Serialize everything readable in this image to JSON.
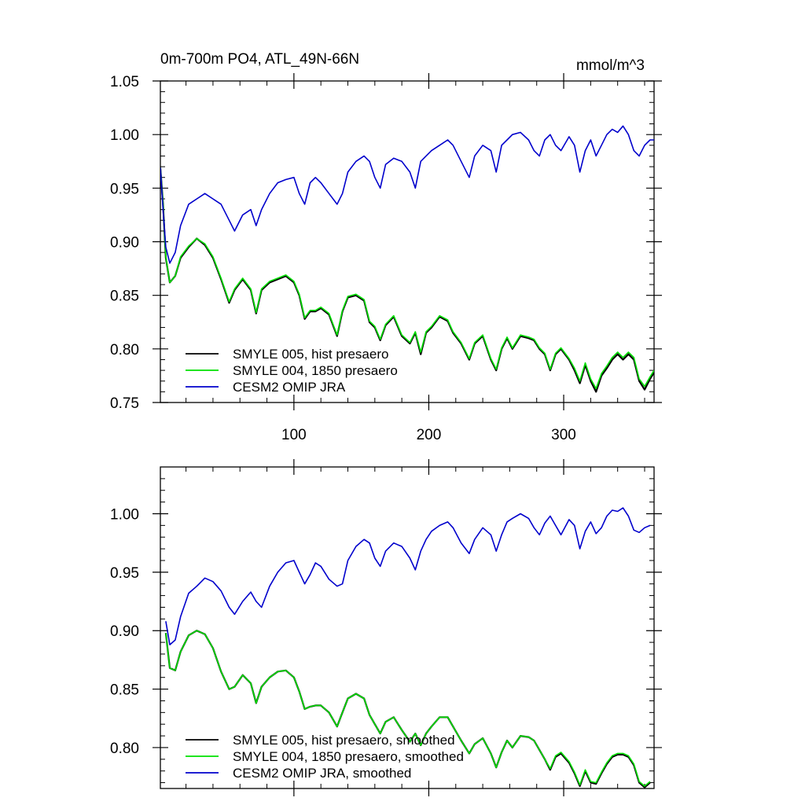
{
  "chart_data": [
    {
      "type": "line",
      "title_left": "0m-700m PO4, ATL_49N-66N",
      "title_right": "mmol/m^3",
      "xlabel": "",
      "ylabel": "",
      "xlim": [
        1,
        367
      ],
      "ylim": [
        0.75,
        1.05
      ],
      "yticks": [
        0.75,
        0.8,
        0.85,
        0.9,
        0.95,
        1.0,
        1.05
      ],
      "ytick_labels": [
        "0.75",
        "0.80",
        "0.85",
        "0.90",
        "0.95",
        "1.00",
        "1.05"
      ],
      "xticks": [
        100,
        200,
        300
      ],
      "xtick_labels": [
        "100",
        "200",
        "300"
      ],
      "legend_position": "bottom-left",
      "series": [
        {
          "name": "SMYLE 005, hist presaero",
          "color": "#000000",
          "x": [
            1,
            3,
            5,
            8,
            12,
            16,
            22,
            28,
            34,
            40,
            46,
            52,
            56,
            62,
            68,
            72,
            76,
            82,
            88,
            94,
            100,
            104,
            108,
            112,
            116,
            120,
            126,
            132,
            136,
            140,
            146,
            152,
            156,
            160,
            164,
            168,
            174,
            180,
            186,
            190,
            194,
            198,
            202,
            208,
            214,
            218,
            224,
            230,
            234,
            240,
            246,
            250,
            254,
            258,
            262,
            268,
            274,
            278,
            282,
            286,
            290,
            294,
            298,
            304,
            308,
            312,
            316,
            320,
            324,
            328,
            332,
            336,
            340,
            344,
            348,
            352,
            356,
            360,
            364,
            367
          ],
          "y": [
            0.969,
            0.935,
            0.885,
            0.862,
            0.868,
            0.885,
            0.895,
            0.903,
            0.897,
            0.885,
            0.865,
            0.843,
            0.855,
            0.865,
            0.855,
            0.833,
            0.855,
            0.862,
            0.865,
            0.868,
            0.862,
            0.85,
            0.828,
            0.835,
            0.835,
            0.838,
            0.832,
            0.812,
            0.835,
            0.848,
            0.85,
            0.845,
            0.825,
            0.82,
            0.808,
            0.822,
            0.83,
            0.812,
            0.805,
            0.815,
            0.795,
            0.815,
            0.82,
            0.83,
            0.826,
            0.815,
            0.805,
            0.79,
            0.805,
            0.812,
            0.79,
            0.78,
            0.8,
            0.81,
            0.8,
            0.812,
            0.81,
            0.808,
            0.8,
            0.795,
            0.78,
            0.795,
            0.8,
            0.79,
            0.78,
            0.768,
            0.785,
            0.77,
            0.76,
            0.775,
            0.782,
            0.79,
            0.795,
            0.79,
            0.795,
            0.79,
            0.77,
            0.762,
            0.772,
            0.778
          ]
        },
        {
          "name": "SMYLE 004, 1850 presaero",
          "color": "#00e000",
          "x": [
            1,
            3,
            5,
            8,
            12,
            16,
            22,
            28,
            34,
            40,
            46,
            52,
            56,
            62,
            68,
            72,
            76,
            82,
            88,
            94,
            100,
            104,
            108,
            112,
            116,
            120,
            126,
            132,
            136,
            140,
            146,
            152,
            156,
            160,
            164,
            168,
            174,
            180,
            186,
            190,
            194,
            198,
            202,
            208,
            214,
            218,
            224,
            230,
            234,
            240,
            246,
            250,
            254,
            258,
            262,
            268,
            274,
            278,
            282,
            286,
            290,
            294,
            298,
            304,
            308,
            312,
            316,
            320,
            324,
            328,
            332,
            336,
            340,
            344,
            348,
            352,
            356,
            360,
            364,
            367
          ],
          "y": [
            0.969,
            0.935,
            0.886,
            0.862,
            0.868,
            0.886,
            0.896,
            0.903,
            0.898,
            0.886,
            0.866,
            0.844,
            0.856,
            0.866,
            0.856,
            0.834,
            0.856,
            0.863,
            0.866,
            0.869,
            0.863,
            0.851,
            0.829,
            0.836,
            0.836,
            0.839,
            0.833,
            0.813,
            0.836,
            0.849,
            0.851,
            0.846,
            0.826,
            0.821,
            0.809,
            0.823,
            0.831,
            0.813,
            0.806,
            0.816,
            0.797,
            0.816,
            0.821,
            0.831,
            0.827,
            0.816,
            0.806,
            0.791,
            0.806,
            0.813,
            0.791,
            0.781,
            0.801,
            0.811,
            0.801,
            0.813,
            0.811,
            0.809,
            0.801,
            0.796,
            0.781,
            0.796,
            0.801,
            0.791,
            0.782,
            0.77,
            0.787,
            0.772,
            0.763,
            0.777,
            0.784,
            0.792,
            0.797,
            0.792,
            0.797,
            0.792,
            0.772,
            0.765,
            0.774,
            0.78
          ]
        },
        {
          "name": "CESM2 OMIP JRA",
          "color": "#0000cc",
          "x": [
            1,
            3,
            5,
            8,
            12,
            16,
            22,
            28,
            34,
            40,
            46,
            52,
            56,
            62,
            68,
            72,
            76,
            82,
            88,
            94,
            100,
            104,
            108,
            112,
            116,
            120,
            126,
            132,
            136,
            140,
            146,
            152,
            156,
            160,
            164,
            168,
            174,
            180,
            186,
            190,
            194,
            198,
            202,
            208,
            214,
            218,
            224,
            230,
            234,
            240,
            246,
            250,
            254,
            258,
            262,
            268,
            274,
            278,
            282,
            286,
            290,
            294,
            298,
            304,
            308,
            312,
            316,
            320,
            324,
            328,
            332,
            336,
            340,
            344,
            348,
            352,
            356,
            360,
            364,
            367
          ],
          "y": [
            0.969,
            0.93,
            0.895,
            0.88,
            0.89,
            0.915,
            0.935,
            0.94,
            0.945,
            0.94,
            0.935,
            0.92,
            0.91,
            0.925,
            0.93,
            0.915,
            0.93,
            0.945,
            0.955,
            0.958,
            0.96,
            0.945,
            0.935,
            0.955,
            0.96,
            0.955,
            0.945,
            0.935,
            0.945,
            0.965,
            0.975,
            0.98,
            0.975,
            0.96,
            0.95,
            0.972,
            0.978,
            0.975,
            0.965,
            0.95,
            0.975,
            0.98,
            0.985,
            0.99,
            0.995,
            0.99,
            0.975,
            0.96,
            0.98,
            0.99,
            0.985,
            0.965,
            0.99,
            0.995,
            1.0,
            1.002,
            0.995,
            0.985,
            0.98,
            0.995,
            1.0,
            0.99,
            0.985,
            0.998,
            0.99,
            0.965,
            0.985,
            0.995,
            0.98,
            0.99,
            1.0,
            1.005,
            1.002,
            1.008,
            1.0,
            0.985,
            0.98,
            0.99,
            0.995,
            0.995
          ]
        }
      ]
    },
    {
      "type": "line",
      "xlabel": "",
      "ylabel": "",
      "xlim": [
        1,
        367
      ],
      "ylim": [
        0.765,
        1.04
      ],
      "yticks": [
        0.8,
        0.85,
        0.9,
        0.95,
        1.0
      ],
      "ytick_labels": [
        "0.80",
        "0.85",
        "0.90",
        "0.95",
        "1.00"
      ],
      "xticks": [
        100,
        200,
        300
      ],
      "legend_position": "bottom-left",
      "series": [
        {
          "name": "SMYLE 005, hist presaero, smoothed",
          "color": "#000000",
          "x": [
            5,
            8,
            12,
            16,
            22,
            28,
            34,
            40,
            46,
            52,
            56,
            62,
            68,
            72,
            76,
            82,
            88,
            94,
            100,
            104,
            108,
            112,
            116,
            120,
            126,
            132,
            136,
            140,
            146,
            152,
            156,
            160,
            164,
            168,
            174,
            180,
            186,
            190,
            194,
            198,
            202,
            208,
            214,
            218,
            224,
            230,
            234,
            240,
            246,
            250,
            254,
            258,
            262,
            268,
            274,
            278,
            282,
            286,
            290,
            294,
            298,
            304,
            308,
            312,
            316,
            320,
            324,
            328,
            332,
            336,
            340,
            344,
            348,
            352,
            356,
            360,
            364
          ],
          "y": [
            0.898,
            0.868,
            0.866,
            0.882,
            0.896,
            0.9,
            0.897,
            0.885,
            0.865,
            0.85,
            0.852,
            0.862,
            0.855,
            0.838,
            0.852,
            0.86,
            0.865,
            0.866,
            0.86,
            0.848,
            0.833,
            0.835,
            0.836,
            0.836,
            0.83,
            0.818,
            0.83,
            0.842,
            0.846,
            0.842,
            0.828,
            0.82,
            0.812,
            0.822,
            0.826,
            0.815,
            0.805,
            0.812,
            0.802,
            0.812,
            0.818,
            0.826,
            0.826,
            0.818,
            0.806,
            0.795,
            0.803,
            0.808,
            0.795,
            0.783,
            0.796,
            0.806,
            0.8,
            0.81,
            0.809,
            0.806,
            0.798,
            0.79,
            0.781,
            0.792,
            0.795,
            0.787,
            0.778,
            0.767,
            0.78,
            0.77,
            0.769,
            0.778,
            0.786,
            0.792,
            0.794,
            0.794,
            0.792,
            0.785,
            0.77,
            0.766,
            0.77
          ]
        },
        {
          "name": "SMYLE 004, 1850 presaero, smoothed",
          "color": "#00e000",
          "x": [
            5,
            8,
            12,
            16,
            22,
            28,
            34,
            40,
            46,
            52,
            56,
            62,
            68,
            72,
            76,
            82,
            88,
            94,
            100,
            104,
            108,
            112,
            116,
            120,
            126,
            132,
            136,
            140,
            146,
            152,
            156,
            160,
            164,
            168,
            174,
            180,
            186,
            190,
            194,
            198,
            202,
            208,
            214,
            218,
            224,
            230,
            234,
            240,
            246,
            250,
            254,
            258,
            262,
            268,
            274,
            278,
            282,
            286,
            290,
            294,
            298,
            304,
            308,
            312,
            316,
            320,
            324,
            328,
            332,
            336,
            340,
            344,
            348,
            352,
            356,
            360,
            364
          ],
          "y": [
            0.898,
            0.868,
            0.866,
            0.882,
            0.896,
            0.9,
            0.897,
            0.885,
            0.865,
            0.85,
            0.852,
            0.862,
            0.855,
            0.838,
            0.852,
            0.86,
            0.865,
            0.866,
            0.86,
            0.848,
            0.833,
            0.835,
            0.836,
            0.836,
            0.83,
            0.818,
            0.83,
            0.842,
            0.846,
            0.842,
            0.828,
            0.82,
            0.812,
            0.822,
            0.826,
            0.815,
            0.805,
            0.812,
            0.802,
            0.812,
            0.818,
            0.826,
            0.826,
            0.818,
            0.806,
            0.795,
            0.803,
            0.808,
            0.795,
            0.783,
            0.796,
            0.806,
            0.8,
            0.81,
            0.809,
            0.806,
            0.798,
            0.79,
            0.782,
            0.793,
            0.796,
            0.788,
            0.779,
            0.768,
            0.781,
            0.771,
            0.77,
            0.779,
            0.787,
            0.793,
            0.795,
            0.795,
            0.793,
            0.786,
            0.771,
            0.767,
            0.771
          ]
        },
        {
          "name": "CESM2 OMIP JRA, smoothed",
          "color": "#0000cc",
          "x": [
            5,
            8,
            12,
            16,
            22,
            28,
            34,
            40,
            46,
            52,
            56,
            62,
            68,
            72,
            76,
            82,
            88,
            94,
            100,
            104,
            108,
            112,
            116,
            120,
            126,
            132,
            136,
            140,
            146,
            152,
            156,
            160,
            164,
            168,
            174,
            180,
            186,
            190,
            194,
            198,
            202,
            208,
            214,
            218,
            224,
            230,
            234,
            240,
            246,
            250,
            254,
            258,
            262,
            268,
            274,
            278,
            282,
            286,
            290,
            294,
            298,
            304,
            308,
            312,
            316,
            320,
            324,
            328,
            332,
            336,
            340,
            344,
            348,
            352,
            356,
            360,
            364
          ],
          "y": [
            0.908,
            0.888,
            0.892,
            0.912,
            0.932,
            0.938,
            0.945,
            0.942,
            0.934,
            0.92,
            0.914,
            0.925,
            0.933,
            0.925,
            0.92,
            0.938,
            0.95,
            0.958,
            0.96,
            0.95,
            0.94,
            0.948,
            0.958,
            0.955,
            0.944,
            0.938,
            0.94,
            0.96,
            0.972,
            0.978,
            0.975,
            0.962,
            0.955,
            0.968,
            0.975,
            0.972,
            0.962,
            0.952,
            0.968,
            0.978,
            0.985,
            0.99,
            0.993,
            0.988,
            0.975,
            0.966,
            0.978,
            0.988,
            0.982,
            0.968,
            0.982,
            0.993,
            0.996,
            1.0,
            0.996,
            0.988,
            0.982,
            0.992,
            0.998,
            0.99,
            0.982,
            0.995,
            0.99,
            0.97,
            0.985,
            0.993,
            0.983,
            0.988,
            0.998,
            1.003,
            1.002,
            1.005,
            0.998,
            0.986,
            0.984,
            0.988,
            0.99
          ]
        }
      ]
    }
  ]
}
